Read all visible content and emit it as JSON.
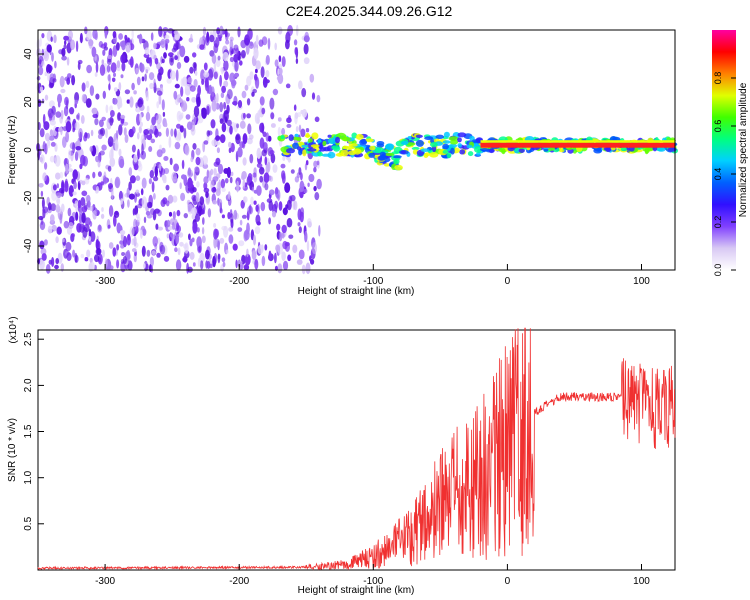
{
  "figure_title": "C2E4.2025.344.09.26.G12",
  "chart_data": [
    {
      "type": "heatmap",
      "xlabel": "Height of straight line (km)",
      "ylabel": "Frequency (Hz)",
      "xlim": [
        -350,
        125
      ],
      "ylim": [
        -50,
        50
      ],
      "xticks": [
        -300,
        -200,
        -100,
        0,
        100
      ],
      "yticks": [
        -40,
        -20,
        0,
        20,
        40
      ],
      "colorbar": {
        "label": "Normalized spectral amplitude",
        "range": [
          0,
          1
        ],
        "ticks": [
          "0.0",
          "0.2",
          "0.4",
          "0.6",
          "0.8"
        ],
        "colormap": [
          "#ffffff",
          "#d8c8f4",
          "#8040ff",
          "#3010ff",
          "#0060ff",
          "#00d0ff",
          "#00ff80",
          "#40ff00",
          "#e0ff00",
          "#ff8000",
          "#ff0000",
          "#ff00a0"
        ]
      },
      "features": {
        "noise_region_x": [
          -350,
          -140
        ],
        "signal_center_hz": 2,
        "signal_band_x": [
          -170,
          125
        ],
        "strong_signal_x": [
          -20,
          125
        ]
      }
    },
    {
      "type": "line",
      "xlabel": "Height of straight line (km)",
      "ylabel": "SNR (10 * v/v)",
      "y_multiplier": "(x10⁴)",
      "xlim": [
        -350,
        125
      ],
      "ylim": [
        0,
        2.6
      ],
      "xticks": [
        -300,
        -200,
        -100,
        0,
        100
      ],
      "yticks": [
        "0.5",
        "1.0",
        "1.5",
        "2.0",
        "2.5"
      ],
      "color": "#f03030",
      "profile": {
        "x": [
          -350,
          -150,
          -120,
          -100,
          -80,
          -60,
          -40,
          -20,
          0,
          20,
          40,
          60,
          80,
          90,
          100,
          110,
          125
        ],
        "y": [
          0.02,
          0.03,
          0.06,
          0.15,
          0.3,
          0.55,
          0.8,
          1.0,
          1.3,
          1.7,
          1.88,
          1.88,
          1.87,
          1.85,
          1.8,
          1.75,
          1.78
        ]
      }
    }
  ]
}
